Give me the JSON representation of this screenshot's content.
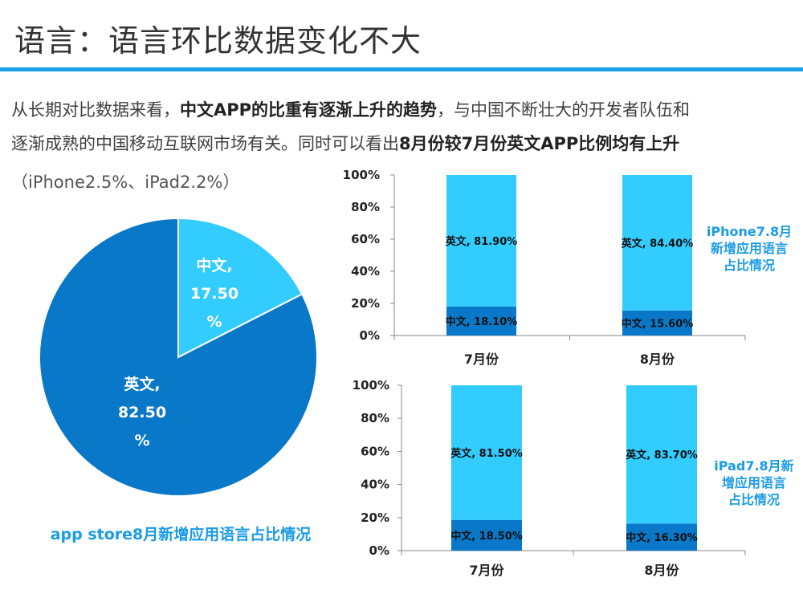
{
  "slide": {
    "title": "语言：语言环比数据变化不大",
    "para": {
      "l1_a": "从长期对比数据来看，",
      "l1_b": "中文APP的比重有逐渐上升的趋势",
      "l1_c": "，与中国不断壮大的开发者队伍和",
      "l2_a": "逐渐成熟的中国移动互联网市场有关。同时可以看出",
      "l2_b": "8月份较7月份英文APP比例均有上升",
      "l3": "（iPhone2.5%、iPad2.2%）"
    }
  },
  "colors": {
    "dark": "#0a78c9",
    "light": "#33ccff",
    "accent": "#1a9be6",
    "rule": "#1aa0e8"
  },
  "chart_data": [
    {
      "type": "pie",
      "title": "app store8月新增应用语言占比情况",
      "slices": [
        {
          "name": "中文",
          "value": 17.5,
          "label_lines": [
            "中文,",
            "17.50",
            "%"
          ],
          "color": "#33ccff"
        },
        {
          "name": "英文",
          "value": 82.5,
          "label_lines": [
            "英文,",
            "82.50",
            "%"
          ],
          "color": "#0a78c9"
        }
      ]
    },
    {
      "type": "bar",
      "stacked": true,
      "title": "iPhone7.8月新增应用语言占比情况",
      "title_lines": [
        "iPhone7.8月",
        "新增应用语言",
        "占比情况"
      ],
      "categories": [
        "7月份",
        "8月份"
      ],
      "series": [
        {
          "name": "中文",
          "values": [
            18.1,
            15.6
          ],
          "labels": [
            "中文, 18.10%",
            "中文, 15.60%"
          ],
          "color": "#0a78c9"
        },
        {
          "name": "英文",
          "values": [
            81.9,
            84.4
          ],
          "labels": [
            "英文, 81.90%",
            "英文, 84.40%"
          ],
          "color": "#33ccff"
        }
      ],
      "yticks": [
        "0%",
        "20%",
        "40%",
        "60%",
        "80%",
        "100%"
      ],
      "ylim": [
        0,
        100
      ]
    },
    {
      "type": "bar",
      "stacked": true,
      "title": "iPad7.8月新增应用语言占比情况",
      "title_lines": [
        "iPad7.8月新",
        "增应用语言",
        "占比情况"
      ],
      "categories": [
        "7月份",
        "8月份"
      ],
      "series": [
        {
          "name": "中文",
          "values": [
            18.5,
            16.3
          ],
          "labels": [
            "中文, 18.50%",
            "中文, 16.30%"
          ],
          "color": "#0a78c9"
        },
        {
          "name": "英文",
          "values": [
            81.5,
            83.7
          ],
          "labels": [
            "英文, 81.50%",
            "英文, 83.70%"
          ],
          "color": "#33ccff"
        }
      ],
      "yticks": [
        "0%",
        "20%",
        "40%",
        "60%",
        "80%",
        "100%"
      ],
      "ylim": [
        0,
        100
      ]
    }
  ]
}
